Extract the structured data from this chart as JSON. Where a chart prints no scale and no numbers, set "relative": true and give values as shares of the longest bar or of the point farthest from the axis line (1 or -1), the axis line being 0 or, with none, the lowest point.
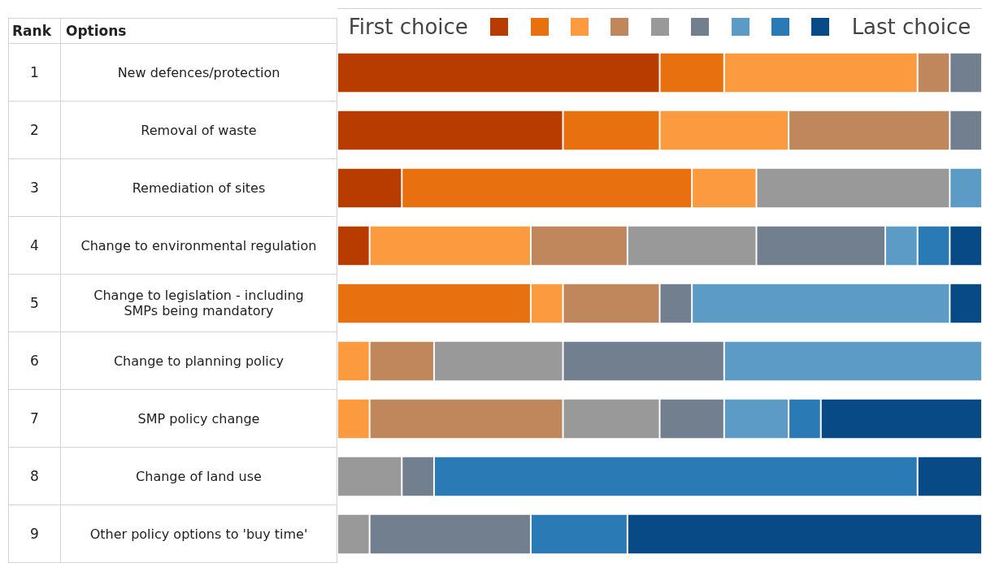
{
  "chart_data": {
    "type": "bar",
    "orientation": "horizontal",
    "stacked": true,
    "relative": true,
    "categories": [
      "New defences/protection",
      "Removal of waste",
      "Remediation of sites",
      "Change to environmental regulation",
      "Change to legislation - including SMPs being mandatory",
      "Change to planning policy",
      "SMP policy change",
      "Change of land use",
      "Other policy options to 'buy time'"
    ],
    "y2_categories": [
      "1",
      "2",
      "3",
      "4",
      "5",
      "6",
      "7",
      "8",
      "9"
    ],
    "annotations": [
      "Rank",
      "Options",
      "First choice",
      "Last choice"
    ],
    "series": [
      {
        "color": "#b83c00",
        "values": [
          0.5,
          0.35,
          0.1,
          0.05,
          0,
          0,
          0,
          0,
          0
        ]
      },
      {
        "color": "#e8700e",
        "values": [
          0.1,
          0.15,
          0.45,
          0,
          0.3,
          0,
          0,
          0,
          0
        ]
      },
      {
        "color": "#fb9a3f",
        "values": [
          0.3,
          0.2,
          0.1,
          0.25,
          0.05,
          0.05,
          0.05,
          0,
          0
        ]
      },
      {
        "color": "#c0865c",
        "values": [
          0.05,
          0.25,
          0,
          0.15,
          0.15,
          0.1,
          0.3,
          0,
          0
        ]
      },
      {
        "color": "#999999",
        "values": [
          0,
          0,
          0.3,
          0.2,
          0,
          0.2,
          0.15,
          0.1,
          0.05
        ]
      },
      {
        "color": "#717f8f",
        "values": [
          0.05,
          0.05,
          0,
          0.2,
          0.05,
          0.25,
          0.1,
          0.05,
          0.25
        ]
      },
      {
        "color": "#5b9bc5",
        "values": [
          0,
          0,
          0.05,
          0.05,
          0.4,
          0.4,
          0.1,
          0,
          0
        ]
      },
      {
        "color": "#2a7ab5",
        "values": [
          0,
          0,
          0,
          0.05,
          0,
          0,
          0.05,
          0.75,
          0.15
        ]
      },
      {
        "color": "#084a86",
        "values": [
          0,
          0,
          0,
          0.05,
          0.05,
          0,
          0.25,
          0.1,
          0.55
        ]
      }
    ]
  }
}
